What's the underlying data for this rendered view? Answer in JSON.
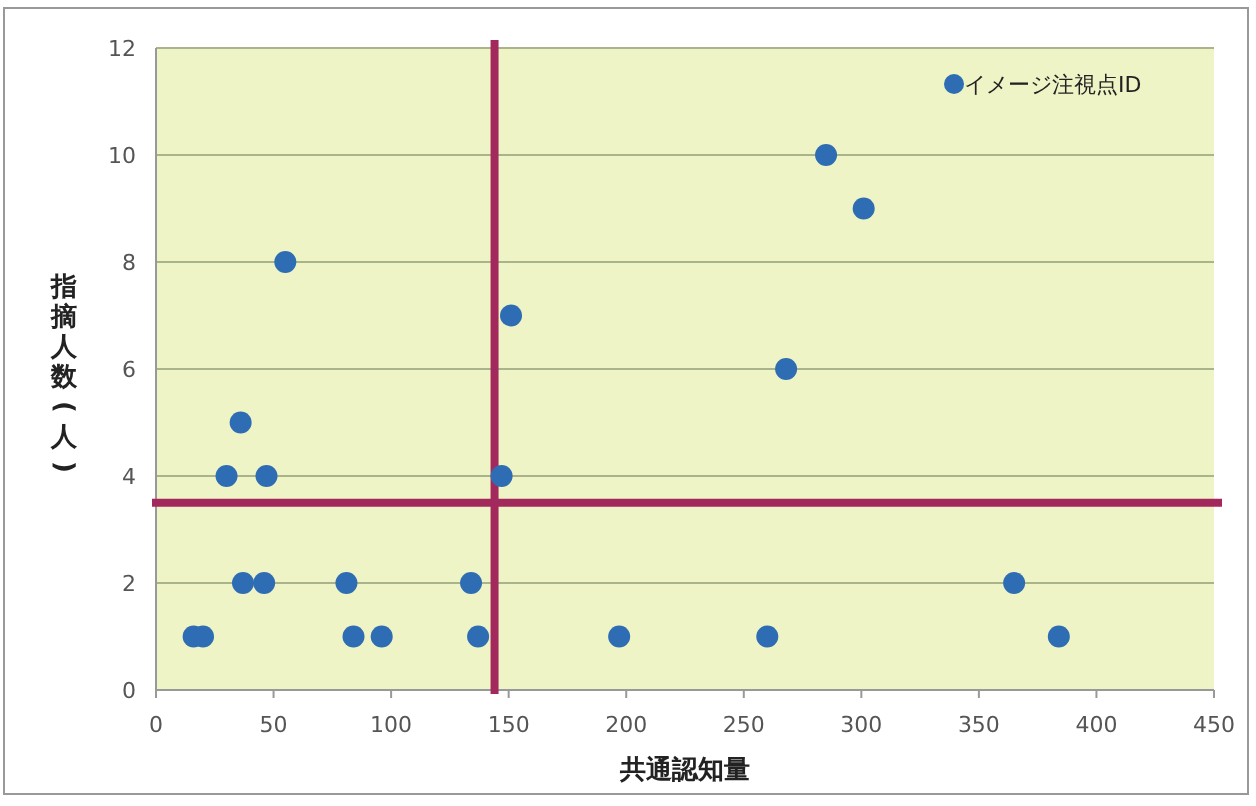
{
  "chart_data": {
    "type": "scatter",
    "xlabel": "共通認知量",
    "ylabel": "指摘人数(人)",
    "xlim": [
      0,
      450
    ],
    "xticks": [
      0,
      50,
      100,
      150,
      200,
      250,
      300,
      350,
      400,
      450
    ],
    "ylim": [
      0,
      12
    ],
    "yticks": [
      0,
      2,
      4,
      6,
      8,
      10,
      12
    ],
    "grid": "y",
    "legend": "top right",
    "marker": "circle",
    "series": [
      {
        "name": "イメージ注視点ID",
        "color": "#2e6db4",
        "x": [
          16,
          20,
          30,
          36,
          47,
          37,
          46,
          81,
          134,
          84,
          96,
          137,
          197,
          147,
          55,
          151,
          285,
          301,
          268,
          365,
          384,
          260
        ],
        "values": [
          1,
          1,
          4,
          5,
          4,
          2,
          2,
          2,
          2,
          1,
          1,
          1,
          1,
          4,
          8,
          7,
          10,
          9,
          6,
          2,
          1,
          1
        ]
      }
    ],
    "ref_lines": [
      {
        "axis": "x",
        "value": 144,
        "color": "#a3285c"
      },
      {
        "axis": "y",
        "value": 3.5,
        "color": "#a3285c"
      }
    ]
  }
}
